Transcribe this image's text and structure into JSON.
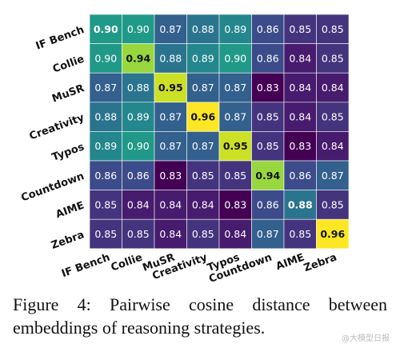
{
  "chart_data": {
    "type": "heatmap",
    "rows": [
      "IF Bench",
      "Collie",
      "MuSR",
      "Creativity",
      "Typos",
      "Countdown",
      "AIME",
      "Zebra"
    ],
    "columns": [
      "IF Bench",
      "Collie",
      "MuSR",
      "Creativity",
      "Typos",
      "Countdown",
      "AIME",
      "Zebra"
    ],
    "values": [
      [
        0.9,
        0.9,
        0.87,
        0.88,
        0.89,
        0.86,
        0.85,
        0.85
      ],
      [
        0.9,
        0.94,
        0.88,
        0.89,
        0.9,
        0.86,
        0.84,
        0.85
      ],
      [
        0.87,
        0.88,
        0.95,
        0.87,
        0.87,
        0.83,
        0.84,
        0.84
      ],
      [
        0.88,
        0.89,
        0.87,
        0.96,
        0.87,
        0.85,
        0.84,
        0.85
      ],
      [
        0.89,
        0.9,
        0.87,
        0.87,
        0.95,
        0.85,
        0.83,
        0.84
      ],
      [
        0.86,
        0.86,
        0.83,
        0.85,
        0.85,
        0.94,
        0.86,
        0.87
      ],
      [
        0.85,
        0.84,
        0.84,
        0.84,
        0.83,
        0.86,
        0.88,
        0.85
      ],
      [
        0.85,
        0.85,
        0.84,
        0.85,
        0.84,
        0.87,
        0.85,
        0.96
      ]
    ],
    "value_format": "0.00",
    "bold_cells": "diagonal",
    "colormap": "viridis",
    "color_range": [
      0.83,
      0.96
    ],
    "grid": true,
    "legend": "none"
  },
  "caption": {
    "text": "Figure 4:  Pairwise cosine distance between embeddings of reasoning strategies."
  },
  "watermark": {
    "text": "@大模型日报"
  },
  "colors": {
    "cell_border": "#ffffff",
    "text_light": "#ffffff",
    "text_dark": "#111111"
  }
}
